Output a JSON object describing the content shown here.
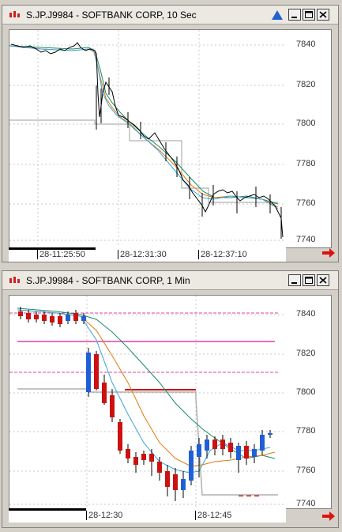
{
  "windows": [
    {
      "title": "S.JP.J9984 - SOFTBANK CORP, 10 Sec",
      "y_ticks": [
        "7840",
        "7820",
        "7800",
        "7780",
        "7760",
        "7740"
      ],
      "x_ticks": [
        "28-11:25:50",
        "28-12:31:30",
        "28-12:37:10"
      ]
    },
    {
      "title": "S.JP.J9984 - SOFTBANK CORP, 1 Min",
      "y_ticks": [
        "7840",
        "7820",
        "7800",
        "7780",
        "7760",
        "7740"
      ],
      "x_ticks": [
        "28-12:30",
        "28-12:45"
      ]
    }
  ],
  "colors": {
    "up_candle": "#1f5fd6",
    "down_candle": "#cc1111",
    "ma_fast": "#3da5e0",
    "ma_mid": "#e07a10",
    "ma_slow": "#1a8a6a",
    "line_pink": "#e040a0",
    "nav_arrow": "#e01010"
  },
  "icons": {
    "app": "candlestick-app-icon",
    "alert": "blue-triangle-icon",
    "minimize": "minimize-icon",
    "maximize": "maximize-icon",
    "close": "close-icon",
    "scroll": "scroll-right-arrow-icon"
  }
}
